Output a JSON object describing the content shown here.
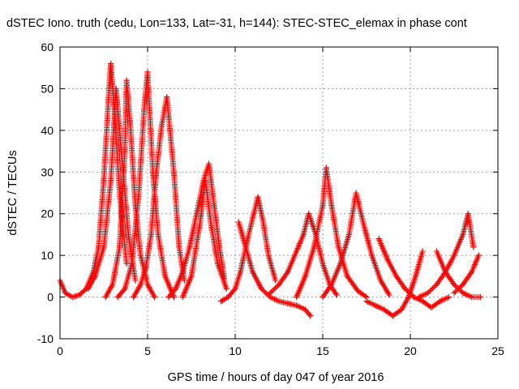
{
  "chart_data": {
    "type": "scatter",
    "title": "dSTEC Iono. truth (cedu, Lon=133, Lat=-31, h=144): STEC-STEC_elemax in phase cont",
    "xlabel": "GPS time / hours of day 047 of year 2016",
    "ylabel": "dSTEC  / TECUs",
    "xlim": [
      0,
      25
    ],
    "ylim": [
      -10,
      60
    ],
    "xticks": [
      0,
      5,
      10,
      15,
      20,
      25
    ],
    "yticks": [
      -10,
      0,
      10,
      20,
      30,
      40,
      50,
      60
    ],
    "grid": true,
    "marker": "+",
    "color": "#ff0000",
    "series": [
      {
        "x": [
          0.0,
          0.3,
          0.7,
          1.1,
          1.5,
          1.9,
          2.2,
          2.5,
          2.8,
          2.9,
          3.1,
          3.4,
          3.8
        ],
        "y": [
          4.0,
          1.0,
          0.0,
          0.5,
          2.0,
          6.0,
          12.0,
          28.0,
          50.0,
          56.0,
          45.0,
          25.0,
          8.0
        ]
      },
      {
        "x": [
          1.6,
          2.0,
          2.5,
          2.9,
          3.2,
          3.5,
          3.9,
          4.3
        ],
        "y": [
          2.0,
          5.0,
          12.0,
          28.0,
          50.0,
          35.0,
          15.0,
          4.0
        ]
      },
      {
        "x": [
          2.6,
          3.0,
          3.4,
          3.7,
          3.8,
          4.0,
          4.3,
          4.6,
          5.0,
          5.4
        ],
        "y": [
          0.0,
          3.0,
          12.0,
          35.0,
          52.0,
          42.0,
          22.0,
          10.0,
          3.0,
          0.0
        ]
      },
      {
        "x": [
          3.3,
          3.7,
          4.1,
          4.5,
          4.8,
          5.0,
          5.3,
          5.6,
          6.0,
          6.5
        ],
        "y": [
          0.0,
          2.0,
          8.0,
          25.0,
          45.0,
          54.0,
          30.0,
          15.0,
          5.0,
          0.0
        ]
      },
      {
        "x": [
          4.2,
          4.6,
          4.9,
          5.2,
          5.5,
          5.8,
          6.1,
          6.5,
          6.8,
          7.1
        ],
        "y": [
          0.0,
          3.0,
          7.0,
          15.0,
          30.0,
          41.0,
          48.0,
          30.0,
          12.0,
          4.0
        ]
      },
      {
        "x": [
          6.2,
          6.6,
          7.0,
          7.4,
          7.8,
          8.2,
          8.5,
          8.8,
          9.1,
          9.4
        ],
        "y": [
          0.0,
          2.0,
          6.0,
          12.0,
          20.0,
          28.0,
          32.0,
          22.0,
          12.0,
          4.0
        ]
      },
      {
        "x": [
          7.0,
          7.5,
          8.0,
          8.3,
          8.6,
          9.0,
          9.5
        ],
        "y": [
          0.0,
          5.0,
          18.0,
          28.0,
          18.0,
          8.0,
          2.0
        ]
      },
      {
        "x": [
          9.2,
          9.6,
          10.0,
          10.3,
          10.6,
          11.0,
          11.3,
          11.6,
          11.9,
          12.3
        ],
        "y": [
          -1.0,
          0.0,
          2.0,
          6.0,
          12.0,
          19.0,
          24.0,
          18.0,
          10.0,
          4.0
        ]
      },
      {
        "x": [
          10.2,
          10.6,
          11.0,
          11.5,
          12.0,
          12.5,
          13.0,
          13.5,
          14.0,
          14.3
        ],
        "y": [
          18.0,
          12.0,
          6.0,
          2.0,
          0.0,
          -1.0,
          -1.5,
          -2.0,
          -3.0,
          -4.5
        ]
      },
      {
        "x": [
          12.0,
          12.5,
          13.0,
          13.5,
          13.9,
          14.2,
          14.6,
          15.0,
          15.4,
          15.8
        ],
        "y": [
          1.0,
          3.0,
          6.0,
          11.0,
          15.0,
          20.0,
          15.0,
          8.0,
          3.0,
          0.5
        ]
      },
      {
        "x": [
          13.5,
          14.0,
          14.5,
          15.0,
          15.2,
          15.5,
          15.9,
          16.4,
          17.0,
          17.5
        ],
        "y": [
          0.0,
          5.0,
          12.0,
          22.0,
          31.0,
          22.0,
          12.0,
          5.0,
          1.5,
          0.0
        ]
      },
      {
        "x": [
          15.0,
          15.5,
          16.0,
          16.5,
          16.9,
          17.3,
          17.8,
          18.3,
          18.8
        ],
        "y": [
          0.0,
          3.0,
          8.0,
          15.0,
          25.0,
          18.0,
          10.0,
          4.0,
          0.5
        ]
      },
      {
        "x": [
          17.5,
          18.0,
          18.5,
          19.0,
          19.5,
          19.9,
          20.3,
          20.7
        ],
        "y": [
          -1.0,
          -2.0,
          -3.0,
          -4.5,
          -3.0,
          0.0,
          5.0,
          11.0
        ]
      },
      {
        "x": [
          18.2,
          18.7,
          19.2,
          19.7,
          20.2,
          20.7,
          21.2,
          21.7,
          22.2
        ],
        "y": [
          14.0,
          9.0,
          5.0,
          2.0,
          0.0,
          -1.0,
          -2.5,
          -1.0,
          0.0
        ]
      },
      {
        "x": [
          20.5,
          21.0,
          21.5,
          22.0,
          22.5,
          23.0,
          23.3,
          23.6
        ],
        "y": [
          0.0,
          1.0,
          3.0,
          6.0,
          10.0,
          15.0,
          20.0,
          12.0
        ]
      },
      {
        "x": [
          21.5,
          22.0,
          22.5,
          23.0,
          23.5,
          24.0
        ],
        "y": [
          11.0,
          6.0,
          3.0,
          1.0,
          0.0,
          0.0
        ]
      },
      {
        "x": [
          22.5,
          23.0,
          23.5,
          23.9
        ],
        "y": [
          1.0,
          3.0,
          6.0,
          10.0
        ]
      }
    ]
  }
}
